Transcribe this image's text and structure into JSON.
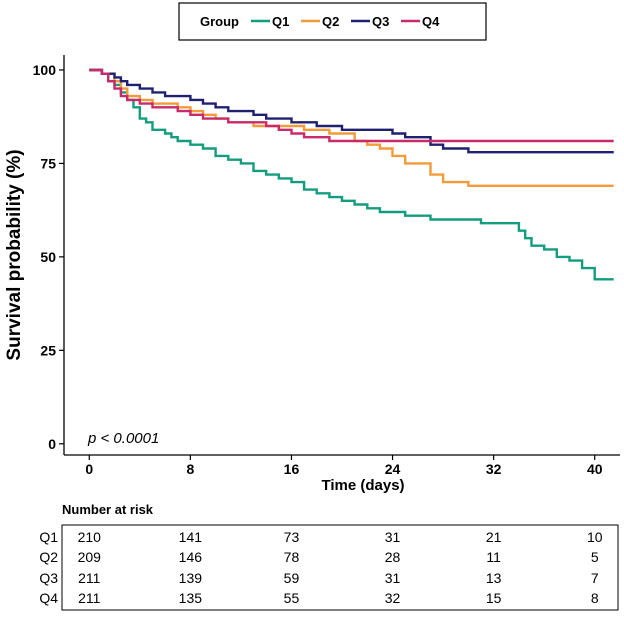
{
  "chart_data": {
    "type": "line",
    "subtype": "kaplan-meier step curve",
    "title": "",
    "xlabel": "Time (days)",
    "ylabel": "Survival probability (%)",
    "xlim": [
      -2,
      42
    ],
    "ylim": [
      -3,
      104
    ],
    "xticks": [
      0,
      8,
      16,
      24,
      32,
      40
    ],
    "yticks": [
      0,
      25,
      50,
      75,
      100
    ],
    "grid": false,
    "legend": {
      "title": "Group",
      "position": "top"
    },
    "annotation": "p < 0.0001",
    "series": [
      {
        "name": "Q1",
        "color": "#139C7E",
        "steps": [
          [
            0,
            100
          ],
          [
            1,
            99
          ],
          [
            1.5,
            97
          ],
          [
            2,
            96
          ],
          [
            2.5,
            94
          ],
          [
            3,
            92
          ],
          [
            3.5,
            90
          ],
          [
            4,
            87
          ],
          [
            4.5,
            86
          ],
          [
            5,
            84
          ],
          [
            6,
            83
          ],
          [
            6.5,
            82
          ],
          [
            7,
            81
          ],
          [
            8,
            80
          ],
          [
            9,
            79
          ],
          [
            10,
            77
          ],
          [
            11,
            76
          ],
          [
            12,
            75
          ],
          [
            13,
            73
          ],
          [
            14,
            72
          ],
          [
            15,
            71
          ],
          [
            16,
            70
          ],
          [
            17,
            68
          ],
          [
            18,
            67
          ],
          [
            19,
            66
          ],
          [
            20,
            65
          ],
          [
            21,
            64
          ],
          [
            22,
            63
          ],
          [
            23,
            62
          ],
          [
            24,
            62
          ],
          [
            25,
            61
          ],
          [
            27,
            60
          ],
          [
            30,
            60
          ],
          [
            31,
            59
          ],
          [
            33,
            59
          ],
          [
            34,
            57
          ],
          [
            34.5,
            55
          ],
          [
            35,
            53
          ],
          [
            36,
            52
          ],
          [
            37,
            50
          ],
          [
            38,
            49
          ],
          [
            39,
            47
          ],
          [
            40,
            44
          ],
          [
            41.5,
            44
          ]
        ]
      },
      {
        "name": "Q2",
        "color": "#F39A3A",
        "steps": [
          [
            0,
            100
          ],
          [
            1,
            99
          ],
          [
            2,
            97
          ],
          [
            2.5,
            95
          ],
          [
            3,
            93
          ],
          [
            4,
            92
          ],
          [
            5,
            91
          ],
          [
            7,
            90
          ],
          [
            8,
            89
          ],
          [
            9,
            88
          ],
          [
            10,
            87
          ],
          [
            11,
            86
          ],
          [
            13,
            85
          ],
          [
            15,
            85
          ],
          [
            17,
            84
          ],
          [
            19,
            83
          ],
          [
            21,
            81
          ],
          [
            22,
            80
          ],
          [
            23,
            79
          ],
          [
            24,
            77
          ],
          [
            25,
            75
          ],
          [
            27,
            72
          ],
          [
            28,
            70
          ],
          [
            30,
            69
          ],
          [
            41.5,
            69
          ]
        ]
      },
      {
        "name": "Q3",
        "color": "#202070",
        "steps": [
          [
            0,
            100
          ],
          [
            1,
            99
          ],
          [
            2,
            98
          ],
          [
            2.5,
            97
          ],
          [
            3,
            96
          ],
          [
            4,
            95
          ],
          [
            5,
            94
          ],
          [
            6,
            93
          ],
          [
            8,
            92
          ],
          [
            9,
            91
          ],
          [
            10,
            90
          ],
          [
            11,
            89
          ],
          [
            13,
            88
          ],
          [
            14,
            87
          ],
          [
            16,
            86
          ],
          [
            18,
            85
          ],
          [
            20,
            84
          ],
          [
            22,
            84
          ],
          [
            24,
            83
          ],
          [
            25,
            82
          ],
          [
            27,
            80
          ],
          [
            28,
            79
          ],
          [
            30,
            78
          ],
          [
            41.5,
            78
          ]
        ]
      },
      {
        "name": "Q4",
        "color": "#C82A6A",
        "steps": [
          [
            0,
            100
          ],
          [
            1,
            99
          ],
          [
            1.5,
            97
          ],
          [
            2,
            95
          ],
          [
            2.5,
            93
          ],
          [
            3,
            92
          ],
          [
            4,
            91
          ],
          [
            5,
            90
          ],
          [
            7,
            89
          ],
          [
            8,
            88
          ],
          [
            9,
            87
          ],
          [
            11,
            86
          ],
          [
            12,
            86
          ],
          [
            14,
            85
          ],
          [
            15,
            84
          ],
          [
            16,
            83
          ],
          [
            17,
            82
          ],
          [
            19,
            81
          ],
          [
            21,
            81
          ],
          [
            24,
            81
          ],
          [
            26,
            81
          ],
          [
            41.5,
            81
          ]
        ]
      }
    ]
  },
  "risk_table": {
    "title": "Number at risk",
    "times": [
      0,
      8,
      16,
      24,
      32,
      40
    ],
    "rows": [
      {
        "group": "Q1",
        "values": [
          "210",
          "141",
          "73",
          "31",
          "21",
          "10"
        ]
      },
      {
        "group": "Q2",
        "values": [
          "209",
          "146",
          "78",
          "28",
          "11",
          "5"
        ]
      },
      {
        "group": "Q3",
        "values": [
          "211",
          "139",
          "59",
          "31",
          "13",
          "7"
        ]
      },
      {
        "group": "Q4",
        "values": [
          "211",
          "135",
          "55",
          "32",
          "15",
          "8"
        ]
      }
    ]
  }
}
